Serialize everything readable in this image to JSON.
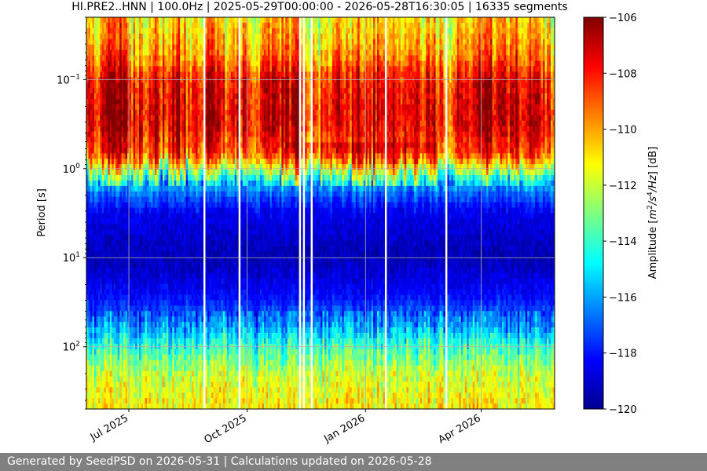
{
  "chart_data": {
    "type": "heatmap",
    "title": "HI.PRE2..HNN | 100.0Hz | 2025-05-29T00:00:00 - 2026-05-28T16:30:05 | 16335 segments",
    "ylabel": "Period [s]",
    "xlabel": "",
    "x_range": [
      "2025-05-29",
      "2026-05-28"
    ],
    "x_ticks": [
      {
        "date": "2025-07-01",
        "label": "Jul 2025"
      },
      {
        "date": "2025-10-01",
        "label": "Oct 2025"
      },
      {
        "date": "2026-01-01",
        "label": "Jan 2026"
      },
      {
        "date": "2026-04-01",
        "label": "Apr 2026"
      }
    ],
    "y_scale": "log",
    "y_inverted": true,
    "y_range": [
      0.02,
      500
    ],
    "y_ticks": [
      {
        "value": 0.1,
        "base": "10",
        "exp": "−1"
      },
      {
        "value": 1,
        "base": "10",
        "exp": "0"
      },
      {
        "value": 10,
        "base": "10",
        "exp": "1"
      },
      {
        "value": 100,
        "base": "10",
        "exp": "2"
      }
    ],
    "grid": true,
    "colormap": "jet",
    "colorbar": {
      "label_main": "Amplitude [",
      "label_unit_1": "m",
      "label_exp_1": "2",
      "label_unit_2": "/s",
      "label_exp_2": "4",
      "label_unit_3": "/Hz",
      "label_end": "] [dB]",
      "range": [
        -120,
        -106
      ],
      "ticks": [
        -106,
        -108,
        -110,
        -112,
        -114,
        -116,
        -118,
        -120
      ],
      "tick_labels": [
        "−106",
        "−108",
        "−110",
        "−112",
        "−114",
        "−116",
        "−118",
        "−120"
      ]
    },
    "amplitude_profile_db": [
      {
        "period": 0.02,
        "db": -111
      },
      {
        "period": 0.05,
        "db": -110
      },
      {
        "period": 0.1,
        "db": -108
      },
      {
        "period": 0.3,
        "db": -107.5
      },
      {
        "period": 0.7,
        "db": -109
      },
      {
        "period": 1.5,
        "db": -116
      },
      {
        "period": 3,
        "db": -118.5
      },
      {
        "period": 10,
        "db": -119.3
      },
      {
        "period": 30,
        "db": -118
      },
      {
        "period": 60,
        "db": -116
      },
      {
        "period": 100,
        "db": -114
      },
      {
        "period": 200,
        "db": -112
      },
      {
        "period": 500,
        "db": -111
      }
    ]
  },
  "footer": {
    "text": "Generated by SeedPSD on 2026-05-31 | Calculations updated on 2026-05-28"
  }
}
